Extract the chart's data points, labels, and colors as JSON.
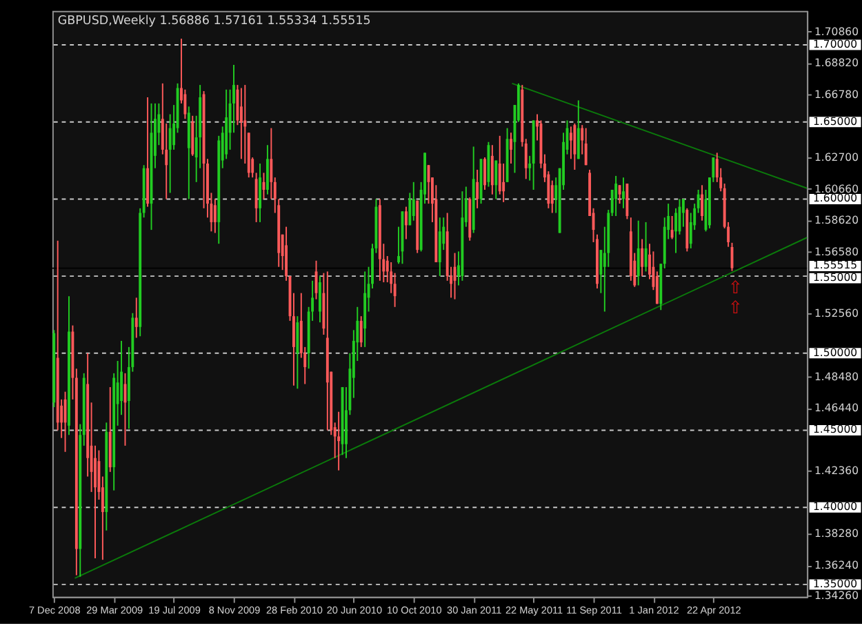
{
  "chart_data": {
    "type": "candlestick",
    "title": "GBPUSD,Weekly  1.56886 1.57161 1.55334 1.55515",
    "colors": [
      "#22cc22",
      "#ff5a5a",
      "#ff5a5a",
      "#ff5a5a",
      "#22cc22",
      "#ff5a5a",
      "#ff5a5a",
      "#22cc22",
      "#22cc22",
      "#ff5a5a",
      "#ff5a5a",
      "#ff5a5a",
      "#ff5a5a",
      "#ff5a5a",
      "#22cc22",
      "#ff5a5a",
      "#22cc22",
      "#22cc22",
      "#22cc22",
      "#ff5a5a",
      "#22cc22",
      "#22cc22",
      "#ff5a5a",
      "#22cc22",
      "#22cc22",
      "#ff5a5a",
      "#22cc22",
      "#22cc22",
      "#22cc22",
      "#ff5a5a",
      "#ff5a5a",
      "#22cc22",
      "#22cc22",
      "#22cc22",
      "#ff5a5a",
      "#ff5a5a",
      "#22cc22",
      "#ff5a5a",
      "#22cc22",
      "#22cc22",
      "#ff5a5a",
      "#ff5a5a",
      "#ff5a5a",
      "#ff5a5a",
      "#22cc22",
      "#22cc22",
      "#22cc22",
      "#22cc22",
      "#22cc22",
      "#ff5a5a",
      "#ff5a5a",
      "#ff5a5a",
      "#ff5a5a",
      "#ff5a5a",
      "#ff5a5a",
      "#22cc22",
      "#ff5a5a",
      "#22cc22",
      "#ff5a5a",
      "#ff5a5a",
      "#ff5a5a",
      "#ff5a5a",
      "#ff5a5a",
      "#ff5a5a",
      "#ff5a5a",
      "#22cc22",
      "#ff5a5a",
      "#ff5a5a",
      "#22cc22",
      "#22cc22",
      "#ff5a5a",
      "#22cc22",
      "#ff5a5a",
      "#ff5a5a",
      "#ff5a5a",
      "#ff5a5a",
      "#ff5a5a",
      "#22cc22",
      "#22cc22",
      "#22cc22",
      "#22cc22",
      "#22cc22",
      "#ff5a5a",
      "#22cc22",
      "#22cc22",
      "#22cc22",
      "#22cc22",
      "#ff5a5a",
      "#ff5a5a",
      "#ff5a5a",
      "#ff5a5a",
      "#ff5a5a",
      "#22cc22",
      "#22cc22",
      "#ff5a5a",
      "#22cc22",
      "#22cc22",
      "#ff5a5a",
      "#22cc22",
      "#22cc22",
      "#ff5a5a",
      "#ff5a5a",
      "#ff5a5a",
      "#22cc22",
      "#22cc22",
      "#ff5a5a",
      "#ff5a5a",
      "#ff5a5a",
      "#22cc22",
      "#22cc22",
      "#22cc22",
      "#ff5a5a",
      "#22cc22",
      "#ff5a5a",
      "#22cc22",
      "#ff5a5a",
      "#22cc22",
      "#ff5a5a",
      "#22cc22",
      "#ff5a5a",
      "#ff5a5a",
      "#22cc22",
      "#ff5a5a",
      "#22cc22",
      "#22cc22",
      "#ff5a5a",
      "#ff5a5a",
      "#22cc22",
      "#22cc22",
      "#ff5a5a",
      "#ff5a5a",
      "#ff5a5a",
      "#ff5a5a",
      "#ff5a5a",
      "#22cc22",
      "#22cc22",
      "#22cc22",
      "#22cc22",
      "#ff5a5a",
      "#ff5a5a",
      "#22cc22",
      "#ff5a5a",
      "#ff5a5a",
      "#ff5a5a",
      "#ff5a5a",
      "#ff5a5a",
      "#22cc22",
      "#22cc22",
      "#22cc22",
      "#22cc22",
      "#22cc22",
      "#ff5a5a",
      "#22cc22",
      "#ff5a5a",
      "#ff5a5a",
      "#ff5a5a",
      "#22cc22",
      "#ff5a5a",
      "#22cc22",
      "#ff5a5a",
      "#ff5a5a",
      "#ff5a5a",
      "#22cc22",
      "#22cc22",
      "#22cc22",
      "#ff5a5a",
      "#22cc22",
      "#22cc22",
      "#22cc22",
      "#ff5a5a",
      "#22cc22",
      "#22cc22",
      "#22cc22",
      "#ff5a5a",
      "#22cc22",
      "#22cc22",
      "#22cc22",
      "#ff5a5a",
      "#ff5a5a",
      "#ff5a5a",
      "#ff5a5a",
      "#ff5a5a"
    ],
    "x": [
      "2008-12-07",
      "2008-12-14",
      "2008-12-21",
      "2008-12-28",
      "2009-01-04",
      "2009-01-11",
      "2009-01-18",
      "2009-01-25",
      "2009-02-01",
      "2009-02-08",
      "2009-02-15",
      "2009-02-22",
      "2009-03-01",
      "2009-03-08",
      "2009-03-15",
      "2009-03-22",
      "2009-03-29",
      "2009-04-05",
      "2009-04-12",
      "2009-04-19",
      "2009-04-26",
      "2009-05-03",
      "2009-05-10",
      "2009-05-17",
      "2009-05-24",
      "2009-05-31",
      "2009-06-07",
      "2009-06-14",
      "2009-06-21",
      "2009-06-28",
      "2009-07-05",
      "2009-07-12",
      "2009-07-19",
      "2009-07-26",
      "2009-08-02",
      "2009-08-09",
      "2009-08-16",
      "2009-08-23",
      "2009-08-30",
      "2009-09-06",
      "2009-09-13",
      "2009-09-20",
      "2009-09-27",
      "2009-10-04",
      "2009-10-11",
      "2009-10-18",
      "2009-10-25",
      "2009-11-01",
      "2009-11-08",
      "2009-11-15",
      "2009-11-22",
      "2009-11-29",
      "2009-12-06",
      "2009-12-13",
      "2009-12-20",
      "2009-12-27",
      "2010-01-03",
      "2010-01-10",
      "2010-01-17",
      "2010-01-24",
      "2010-01-31",
      "2010-02-07",
      "2010-02-14",
      "2010-02-21",
      "2010-02-28",
      "2010-03-07",
      "2010-03-14",
      "2010-03-21",
      "2010-03-28",
      "2010-04-04",
      "2010-04-11",
      "2010-04-18",
      "2010-04-25",
      "2010-05-02",
      "2010-05-09",
      "2010-05-16",
      "2010-05-23",
      "2010-05-30",
      "2010-06-06",
      "2010-06-13",
      "2010-06-20",
      "2010-06-27",
      "2010-07-04",
      "2010-07-11",
      "2010-07-18",
      "2010-07-25",
      "2010-08-01",
      "2010-08-08",
      "2010-08-15",
      "2010-08-22",
      "2010-08-29",
      "2010-09-05",
      "2010-09-12",
      "2010-09-19",
      "2010-09-26",
      "2010-10-03",
      "2010-10-10",
      "2010-10-17",
      "2010-10-24",
      "2010-10-31",
      "2010-11-07",
      "2010-11-14",
      "2010-11-21",
      "2010-11-28",
      "2010-12-05",
      "2010-12-12",
      "2010-12-19",
      "2010-12-26",
      "2011-01-02",
      "2011-01-09",
      "2011-01-16",
      "2011-01-23",
      "2011-01-30",
      "2011-02-06",
      "2011-02-13",
      "2011-02-20",
      "2011-02-27",
      "2011-03-06",
      "2011-03-13",
      "2011-03-20",
      "2011-03-27",
      "2011-04-03",
      "2011-04-10",
      "2011-04-17",
      "2011-04-24",
      "2011-05-01",
      "2011-05-08",
      "2011-05-15",
      "2011-05-22",
      "2011-05-29",
      "2011-06-05",
      "2011-06-12",
      "2011-06-19",
      "2011-06-26",
      "2011-07-03",
      "2011-07-10",
      "2011-07-17",
      "2011-07-24",
      "2011-07-31",
      "2011-08-07",
      "2011-08-14",
      "2011-08-21",
      "2011-08-28",
      "2011-09-04",
      "2011-09-11",
      "2011-09-18",
      "2011-09-25",
      "2011-10-02",
      "2011-10-09",
      "2011-10-16",
      "2011-10-23",
      "2011-10-30",
      "2011-11-06",
      "2011-11-13",
      "2011-11-20",
      "2011-11-27",
      "2011-12-04",
      "2011-12-11",
      "2011-12-18",
      "2011-12-25",
      "2012-01-01",
      "2012-01-08",
      "2012-01-15",
      "2012-01-22",
      "2012-01-29",
      "2012-02-05",
      "2012-02-12",
      "2012-02-19",
      "2012-02-26",
      "2012-03-04",
      "2012-03-11",
      "2012-03-18",
      "2012-03-25",
      "2012-04-01",
      "2012-04-08",
      "2012-04-15",
      "2012-04-22",
      "2012-04-29",
      "2012-05-06",
      "2012-05-13",
      "2012-05-20",
      "2012-05-27"
    ],
    "ohlc": [
      [
        1.468,
        1.515,
        1.465,
        1.513
      ],
      [
        1.497,
        1.573,
        1.45,
        1.455
      ],
      [
        1.466,
        1.47,
        1.445,
        1.455
      ],
      [
        1.47,
        1.475,
        1.436,
        1.455
      ],
      [
        1.453,
        1.537,
        1.447,
        1.514
      ],
      [
        1.514,
        1.518,
        1.47,
        1.484
      ],
      [
        1.484,
        1.49,
        1.356,
        1.373
      ],
      [
        1.373,
        1.454,
        1.355,
        1.447
      ],
      [
        1.447,
        1.487,
        1.44,
        1.484
      ],
      [
        1.48,
        1.5,
        1.42,
        1.432
      ],
      [
        1.44,
        1.468,
        1.41,
        1.423
      ],
      [
        1.432,
        1.44,
        1.367,
        1.413
      ],
      [
        1.43,
        1.437,
        1.405,
        1.41
      ],
      [
        1.413,
        1.42,
        1.366,
        1.397
      ],
      [
        1.397,
        1.455,
        1.385,
        1.449
      ],
      [
        1.449,
        1.478,
        1.423,
        1.426
      ],
      [
        1.426,
        1.487,
        1.411,
        1.484
      ],
      [
        1.467,
        1.495,
        1.453,
        1.481
      ],
      [
        1.469,
        1.508,
        1.46,
        1.488
      ],
      [
        1.48,
        1.487,
        1.44,
        1.468
      ],
      [
        1.469,
        1.504,
        1.451,
        1.491
      ],
      [
        1.491,
        1.526,
        1.488,
        1.523
      ],
      [
        1.523,
        1.536,
        1.51,
        1.517
      ],
      [
        1.517,
        1.594,
        1.511,
        1.591
      ],
      [
        1.591,
        1.622,
        1.588,
        1.62
      ],
      [
        1.62,
        1.666,
        1.595,
        1.597
      ],
      [
        1.597,
        1.662,
        1.58,
        1.643
      ],
      [
        1.628,
        1.662,
        1.62,
        1.652
      ],
      [
        1.643,
        1.662,
        1.635,
        1.655
      ],
      [
        1.652,
        1.675,
        1.629,
        1.632
      ],
      [
        1.632,
        1.649,
        1.6,
        1.622
      ],
      [
        1.632,
        1.655,
        1.604,
        1.646
      ],
      [
        1.635,
        1.661,
        1.632,
        1.649
      ],
      [
        1.646,
        1.675,
        1.643,
        1.672
      ],
      [
        1.672,
        1.704,
        1.662,
        1.664
      ],
      [
        1.668,
        1.671,
        1.652,
        1.655
      ],
      [
        1.633,
        1.66,
        1.6,
        1.656
      ],
      [
        1.65,
        1.654,
        1.628,
        1.629
      ],
      [
        1.627,
        1.654,
        1.611,
        1.64
      ],
      [
        1.64,
        1.674,
        1.62,
        1.666
      ],
      [
        1.668,
        1.67,
        1.594,
        1.623
      ],
      [
        1.623,
        1.626,
        1.588,
        1.597
      ],
      [
        1.597,
        1.604,
        1.579,
        1.585
      ],
      [
        1.596,
        1.6,
        1.578,
        1.585
      ],
      [
        1.585,
        1.641,
        1.571,
        1.638
      ],
      [
        1.625,
        1.647,
        1.62,
        1.643
      ],
      [
        1.629,
        1.671,
        1.626,
        1.653
      ],
      [
        1.643,
        1.671,
        1.632,
        1.662
      ],
      [
        1.662,
        1.687,
        1.643,
        1.674
      ],
      [
        1.671,
        1.674,
        1.648,
        1.651
      ],
      [
        1.66,
        1.672,
        1.626,
        1.65
      ],
      [
        1.651,
        1.674,
        1.623,
        1.647
      ],
      [
        1.643,
        1.643,
        1.614,
        1.617
      ],
      [
        1.626,
        1.627,
        1.614,
        1.617
      ],
      [
        1.613,
        1.617,
        1.585,
        1.594
      ],
      [
        1.594,
        1.623,
        1.585,
        1.614
      ],
      [
        1.611,
        1.617,
        1.6,
        1.606
      ],
      [
        1.606,
        1.635,
        1.603,
        1.626
      ],
      [
        1.626,
        1.646,
        1.6,
        1.611
      ],
      [
        1.611,
        1.614,
        1.591,
        1.6
      ],
      [
        1.596,
        1.6,
        1.556,
        1.565
      ],
      [
        1.577,
        1.577,
        1.554,
        1.563
      ],
      [
        1.57,
        1.582,
        1.547,
        1.55
      ],
      [
        1.55,
        1.55,
        1.521,
        1.524
      ],
      [
        1.524,
        1.539,
        1.479,
        1.504
      ],
      [
        1.5,
        1.524,
        1.477,
        1.52
      ],
      [
        1.521,
        1.539,
        1.497,
        1.5
      ],
      [
        1.5,
        1.504,
        1.48,
        1.491
      ],
      [
        1.5,
        1.53,
        1.49,
        1.527
      ],
      [
        1.527,
        1.547,
        1.521,
        1.536
      ],
      [
        1.553,
        1.56,
        1.535,
        1.539
      ],
      [
        1.527,
        1.55,
        1.52,
        1.546
      ],
      [
        1.539,
        1.552,
        1.512,
        1.516
      ],
      [
        1.51,
        1.553,
        1.45,
        1.481
      ],
      [
        1.488,
        1.488,
        1.447,
        1.45
      ],
      [
        1.452,
        1.455,
        1.432,
        1.446
      ],
      [
        1.446,
        1.462,
        1.424,
        1.443
      ],
      [
        1.441,
        1.478,
        1.434,
        1.478
      ],
      [
        1.441,
        1.478,
        1.432,
        1.463
      ],
      [
        1.463,
        1.5,
        1.46,
        1.49
      ],
      [
        1.484,
        1.515,
        1.471,
        1.508
      ],
      [
        1.507,
        1.53,
        1.495,
        1.521
      ],
      [
        1.521,
        1.524,
        1.504,
        1.507
      ],
      [
        1.516,
        1.553,
        1.504,
        1.539
      ],
      [
        1.536,
        1.556,
        1.527,
        1.545
      ],
      [
        1.545,
        1.571,
        1.542,
        1.568
      ],
      [
        1.568,
        1.6,
        1.565,
        1.595
      ],
      [
        1.596,
        1.6,
        1.547,
        1.561
      ],
      [
        1.561,
        1.571,
        1.546,
        1.553
      ],
      [
        1.56,
        1.563,
        1.546,
        1.553
      ],
      [
        1.553,
        1.559,
        1.539,
        1.545
      ],
      [
        1.545,
        1.552,
        1.53,
        1.537
      ],
      [
        1.559,
        1.582,
        1.558,
        1.563
      ],
      [
        1.566,
        1.592,
        1.558,
        1.592
      ],
      [
        1.592,
        1.595,
        1.574,
        1.583
      ],
      [
        1.583,
        1.604,
        1.583,
        1.6
      ],
      [
        1.589,
        1.611,
        1.586,
        1.6
      ],
      [
        1.599,
        1.599,
        1.565,
        1.567
      ],
      [
        1.567,
        1.611,
        1.566,
        1.606
      ],
      [
        1.603,
        1.63,
        1.597,
        1.63
      ],
      [
        1.622,
        1.622,
        1.597,
        1.611
      ],
      [
        1.614,
        1.614,
        1.585,
        1.597
      ],
      [
        1.6,
        1.609,
        1.559,
        1.559
      ],
      [
        1.559,
        1.588,
        1.55,
        1.579
      ],
      [
        1.571,
        1.588,
        1.567,
        1.582
      ],
      [
        1.579,
        1.591,
        1.547,
        1.55
      ],
      [
        1.55,
        1.556,
        1.536,
        1.545
      ],
      [
        1.556,
        1.565,
        1.535,
        1.547
      ],
      [
        1.55,
        1.566,
        1.544,
        1.557
      ],
      [
        1.55,
        1.605,
        1.547,
        1.588
      ],
      [
        1.585,
        1.608,
        1.582,
        1.6
      ],
      [
        1.6,
        1.601,
        1.573,
        1.575
      ],
      [
        1.58,
        1.634,
        1.578,
        1.613
      ],
      [
        1.611,
        1.619,
        1.594,
        1.6
      ],
      [
        1.6,
        1.626,
        1.597,
        1.626
      ],
      [
        1.626,
        1.627,
        1.606,
        1.609
      ],
      [
        1.611,
        1.637,
        1.608,
        1.635
      ],
      [
        1.628,
        1.635,
        1.603,
        1.609
      ],
      [
        1.609,
        1.625,
        1.6,
        1.625
      ],
      [
        1.623,
        1.641,
        1.603,
        1.605
      ],
      [
        1.611,
        1.623,
        1.598,
        1.605
      ],
      [
        1.611,
        1.646,
        1.611,
        1.639
      ],
      [
        1.639,
        1.643,
        1.623,
        1.632
      ],
      [
        1.637,
        1.661,
        1.617,
        1.661
      ],
      [
        1.651,
        1.675,
        1.65,
        1.674
      ],
      [
        1.671,
        1.674,
        1.634,
        1.637
      ],
      [
        1.636,
        1.639,
        1.613,
        1.62
      ],
      [
        1.62,
        1.628,
        1.612,
        1.623
      ],
      [
        1.623,
        1.651,
        1.606,
        1.651
      ],
      [
        1.651,
        1.655,
        1.638,
        1.647
      ],
      [
        1.649,
        1.651,
        1.62,
        1.623
      ],
      [
        1.623,
        1.629,
        1.611,
        1.614
      ],
      [
        1.616,
        1.618,
        1.594,
        1.597
      ],
      [
        1.609,
        1.612,
        1.591,
        1.597
      ],
      [
        1.6,
        1.614,
        1.591,
        1.609
      ],
      [
        1.578,
        1.62,
        1.578,
        1.62
      ],
      [
        1.609,
        1.643,
        1.606,
        1.637
      ],
      [
        1.632,
        1.651,
        1.629,
        1.646
      ],
      [
        1.643,
        1.647,
        1.626,
        1.638
      ],
      [
        1.648,
        1.649,
        1.619,
        1.629
      ],
      [
        1.626,
        1.664,
        1.626,
        1.646
      ],
      [
        1.646,
        1.648,
        1.629,
        1.638
      ],
      [
        1.636,
        1.646,
        1.622,
        1.622
      ],
      [
        1.617,
        1.619,
        1.589,
        1.589
      ],
      [
        1.591,
        1.594,
        1.572,
        1.58
      ],
      [
        1.574,
        1.577,
        1.542,
        1.545
      ],
      [
        1.551,
        1.567,
        1.539,
        1.567
      ],
      [
        1.556,
        1.582,
        1.527,
        1.565
      ],
      [
        1.565,
        1.593,
        1.556,
        1.591
      ],
      [
        1.591,
        1.606,
        1.589,
        1.606
      ],
      [
        1.6,
        1.615,
        1.589,
        1.61
      ],
      [
        1.609,
        1.609,
        1.597,
        1.603
      ],
      [
        1.6,
        1.614,
        1.594,
        1.605
      ],
      [
        1.61,
        1.61,
        1.587,
        1.589
      ],
      [
        1.579,
        1.588,
        1.547,
        1.55
      ],
      [
        1.56,
        1.565,
        1.543,
        1.544
      ],
      [
        1.55,
        1.586,
        1.544,
        1.568
      ],
      [
        1.568,
        1.574,
        1.55,
        1.556
      ],
      [
        1.556,
        1.585,
        1.553,
        1.568
      ],
      [
        1.564,
        1.571,
        1.548,
        1.551
      ],
      [
        1.556,
        1.566,
        1.541,
        1.543
      ],
      [
        1.55,
        1.553,
        1.532,
        1.532
      ],
      [
        1.532,
        1.558,
        1.528,
        1.558
      ],
      [
        1.558,
        1.588,
        1.555,
        1.582
      ],
      [
        1.58,
        1.597,
        1.574,
        1.589
      ],
      [
        1.58,
        1.589,
        1.574,
        1.575
      ],
      [
        1.579,
        1.594,
        1.565,
        1.591
      ],
      [
        1.579,
        1.6,
        1.577,
        1.595
      ],
      [
        1.591,
        1.6,
        1.582,
        1.6
      ],
      [
        1.593,
        1.594,
        1.566,
        1.568
      ],
      [
        1.571,
        1.591,
        1.568,
        1.585
      ],
      [
        1.583,
        1.597,
        1.58,
        1.594
      ],
      [
        1.594,
        1.606,
        1.591,
        1.603
      ],
      [
        1.603,
        1.609,
        1.586,
        1.589
      ],
      [
        1.58,
        1.606,
        1.579,
        1.6
      ],
      [
        1.583,
        1.614,
        1.581,
        1.614
      ],
      [
        1.614,
        1.627,
        1.611,
        1.627
      ],
      [
        1.626,
        1.63,
        1.611,
        1.614
      ],
      [
        1.614,
        1.62,
        1.605,
        1.607
      ],
      [
        1.607,
        1.61,
        1.581,
        1.582
      ],
      [
        1.582,
        1.585,
        1.569,
        1.572
      ],
      [
        1.56886,
        1.57161,
        1.55334,
        1.55515
      ]
    ],
    "series": [
      {
        "type": "line",
        "x": [
          "2009-01-15",
          "2012-10-14"
        ],
        "values": [
          1.354,
          1.575
        ],
        "color": "#0b7a0b"
      },
      {
        "type": "line",
        "x": [
          "2011-04-12",
          "2012-10-14"
        ],
        "values": [
          1.675,
          1.607
        ],
        "color": "#0b7a0b"
      }
    ],
    "xlim": [
      "2008-12-04",
      "2012-10-14"
    ],
    "xticks": [
      {
        "value": "2008-12-07",
        "label": "7 Dec 2008"
      },
      {
        "value": "2009-03-29",
        "label": "29 Mar 2009"
      },
      {
        "value": "2009-07-19",
        "label": "19 Jul 2009"
      },
      {
        "value": "2009-11-08",
        "label": "8 Nov 2009"
      },
      {
        "value": "2010-02-28",
        "label": "28 Feb 2010"
      },
      {
        "value": "2010-06-20",
        "label": "20 Jun 2010"
      },
      {
        "value": "2010-10-10",
        "label": "10 Oct 2010"
      },
      {
        "value": "2011-01-30",
        "label": "30 Jan 2011"
      },
      {
        "value": "2011-05-22",
        "label": "22 May 2011"
      },
      {
        "value": "2011-09-11",
        "label": "11 Sep 2011"
      },
      {
        "value": "2012-01-01",
        "label": "1 Jan 2012"
      },
      {
        "value": "2012-04-22",
        "label": "22 Apr 2012"
      }
    ],
    "ylim": [
      1.342,
      1.722
    ],
    "yticks": [
      {
        "value": 1.7086,
        "label": "1.70860"
      },
      {
        "value": 1.6882,
        "label": "1.68820"
      },
      {
        "value": 1.6678,
        "label": "1.66780"
      },
      {
        "value": 1.627,
        "label": "1.62700"
      },
      {
        "value": 1.6066,
        "label": "1.60660"
      },
      {
        "value": 1.5862,
        "label": "1.58620"
      },
      {
        "value": 1.5658,
        "label": "1.56580"
      },
      {
        "value": 1.5256,
        "label": "1.52560"
      },
      {
        "value": 1.4848,
        "label": "1.48480"
      },
      {
        "value": 1.4644,
        "label": "1.46440"
      },
      {
        "value": 1.4236,
        "label": "1.42360"
      },
      {
        "value": 1.3828,
        "label": "1.38280"
      },
      {
        "value": 1.3624,
        "label": "1.36240"
      },
      {
        "value": 1.3426,
        "label": "1.34260"
      }
    ],
    "ref_lines": [
      {
        "axis": "y",
        "value": 1.7,
        "label": "1.70000",
        "color": "#c8c8c8",
        "line_style": "dashed"
      },
      {
        "axis": "y",
        "value": 1.65,
        "label": "1.65000",
        "color": "#c8c8c8",
        "line_style": "dashed"
      },
      {
        "axis": "y",
        "value": 1.6,
        "label": "1.60000",
        "color": "#c8c8c8",
        "line_style": "dashed"
      },
      {
        "axis": "y",
        "value": 1.55515,
        "label": "1.55515",
        "color": "#000000",
        "line_style": "solid"
      },
      {
        "axis": "y",
        "value": 1.55,
        "label": "1.55000",
        "color": "#c8c8c8",
        "line_style": "dashed"
      },
      {
        "axis": "y",
        "value": 1.5,
        "label": "1.50000",
        "color": "#c8c8c8",
        "line_style": "dashed"
      },
      {
        "axis": "y",
        "value": 1.45,
        "label": "1.45000",
        "color": "#c8c8c8",
        "line_style": "dashed"
      },
      {
        "axis": "y",
        "value": 1.4,
        "label": "1.40000",
        "color": "#c8c8c8",
        "line_style": "dashed"
      },
      {
        "axis": "y",
        "value": 1.35,
        "label": "1.35000",
        "color": "#c8c8c8",
        "line_style": "dashed"
      }
    ],
    "annotations": [
      "⇧",
      "⇧"
    ],
    "grid": false
  }
}
